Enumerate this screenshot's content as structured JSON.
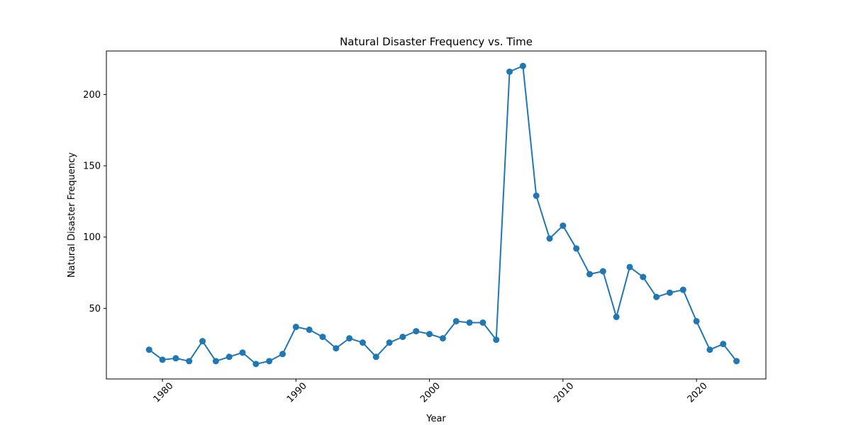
{
  "chart_data": {
    "type": "line",
    "title": "Natural Disaster Frequency vs. Time",
    "xlabel": "Year",
    "ylabel": "Natural Disaster Frequency",
    "xlim": [
      1975.8,
      2025.2
    ],
    "ylim": [
      0.5,
      230.5
    ],
    "xticks": [
      1980,
      1990,
      2000,
      2010,
      2020
    ],
    "yticks": [
      50,
      100,
      150,
      200
    ],
    "grid": false,
    "line_color": "#1f77b4",
    "marker": "circle",
    "series": [
      {
        "x": [
          1979,
          1980,
          1981,
          1982,
          1983,
          1984,
          1985,
          1986,
          1987,
          1988,
          1989,
          1990,
          1991,
          1992,
          1993,
          1994,
          1995,
          1996,
          1997,
          1998,
          1999,
          2000,
          2001,
          2002,
          2003,
          2004,
          2005,
          2006,
          2007,
          2008,
          2009,
          2010,
          2011,
          2012,
          2013,
          2014,
          2015,
          2016,
          2017,
          2018,
          2019,
          2020,
          2021,
          2022,
          2023
        ],
        "values": [
          21,
          14,
          15,
          13,
          27,
          13,
          16,
          19,
          11,
          13,
          18,
          37,
          35,
          30,
          22,
          29,
          26,
          16,
          26,
          30,
          34,
          32,
          29,
          41,
          40,
          40,
          28,
          216,
          220,
          129,
          99,
          108,
          92,
          74,
          76,
          44,
          79,
          72,
          58,
          61,
          63,
          41,
          21,
          25,
          13
        ]
      }
    ]
  }
}
